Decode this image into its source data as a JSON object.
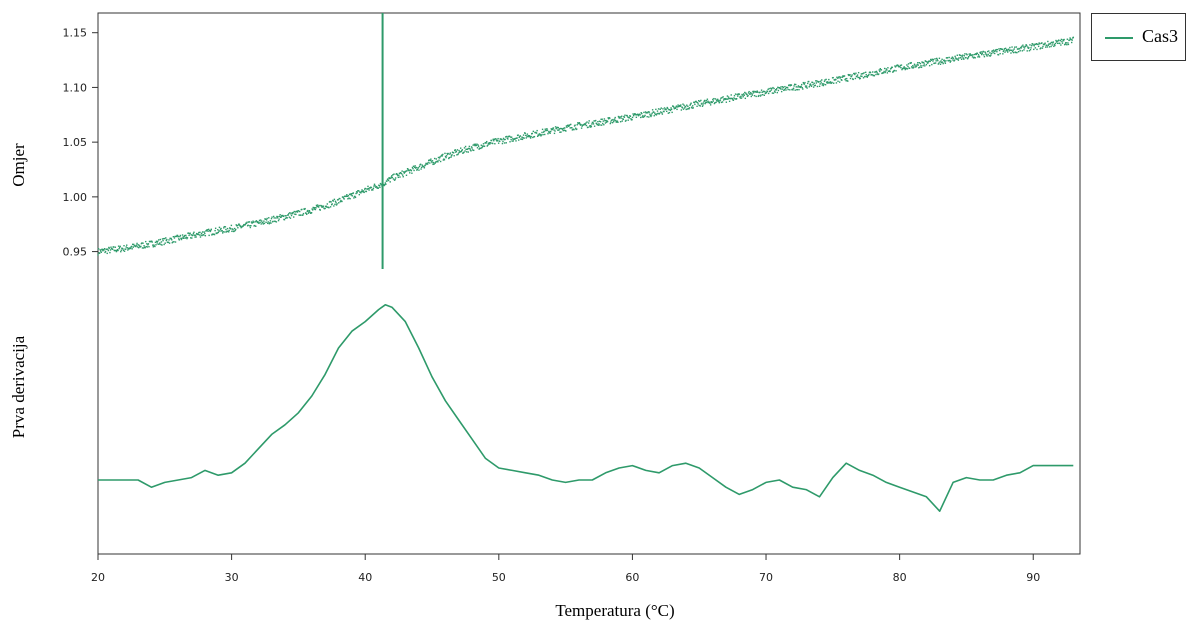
{
  "chart_data": {
    "type": "scatter+line",
    "xlabel": "Temperatura (°C)",
    "xlim": [
      20,
      93.5
    ],
    "x_ticks": [
      "20",
      "30",
      "40",
      "50",
      "60",
      "70",
      "80",
      "90"
    ],
    "top_panel": {
      "ylabel": "Omjer",
      "ylim": [
        0.935,
        1.168
      ],
      "y_ticks": [
        "0.95",
        "1.00",
        "1.05",
        "1.10",
        "1.15"
      ],
      "series_name": "Cas3",
      "points": [
        [
          20,
          0.95
        ],
        [
          22,
          0.953
        ],
        [
          24,
          0.957
        ],
        [
          26,
          0.962
        ],
        [
          28,
          0.967
        ],
        [
          30,
          0.971
        ],
        [
          32,
          0.976
        ],
        [
          34,
          0.982
        ],
        [
          36,
          0.988
        ],
        [
          38,
          0.996
        ],
        [
          40,
          1.006
        ],
        [
          41.5,
          1.013
        ],
        [
          42,
          1.017
        ],
        [
          44,
          1.027
        ],
        [
          46,
          1.037
        ],
        [
          48,
          1.045
        ],
        [
          50,
          1.051
        ],
        [
          55,
          1.063
        ],
        [
          60,
          1.073
        ],
        [
          65,
          1.085
        ],
        [
          70,
          1.096
        ],
        [
          75,
          1.106
        ],
        [
          80,
          1.118
        ],
        [
          85,
          1.128
        ],
        [
          90,
          1.137
        ],
        [
          93,
          1.143
        ]
      ],
      "marker": {
        "x": 41.3,
        "y_from": 0.925,
        "y_to": 1.168
      }
    },
    "bottom_panel": {
      "ylabel": "Prva derivacija",
      "ylim": [
        0,
        1
      ],
      "points": [
        [
          20,
          0.25
        ],
        [
          23,
          0.25
        ],
        [
          24,
          0.22
        ],
        [
          25,
          0.24
        ],
        [
          26,
          0.25
        ],
        [
          27,
          0.26
        ],
        [
          28,
          0.29
        ],
        [
          29,
          0.27
        ],
        [
          30,
          0.28
        ],
        [
          31,
          0.32
        ],
        [
          32,
          0.38
        ],
        [
          33,
          0.44
        ],
        [
          34,
          0.48
        ],
        [
          35,
          0.53
        ],
        [
          36,
          0.6
        ],
        [
          37,
          0.69
        ],
        [
          38,
          0.8
        ],
        [
          39,
          0.87
        ],
        [
          40,
          0.91
        ],
        [
          41,
          0.96
        ],
        [
          41.5,
          0.98
        ],
        [
          42,
          0.97
        ],
        [
          43,
          0.91
        ],
        [
          44,
          0.8
        ],
        [
          45,
          0.68
        ],
        [
          46,
          0.58
        ],
        [
          47,
          0.5
        ],
        [
          48,
          0.42
        ],
        [
          49,
          0.34
        ],
        [
          50,
          0.3
        ],
        [
          51,
          0.29
        ],
        [
          52,
          0.28
        ],
        [
          53,
          0.27
        ],
        [
          54,
          0.25
        ],
        [
          55,
          0.24
        ],
        [
          56,
          0.25
        ],
        [
          57,
          0.25
        ],
        [
          58,
          0.28
        ],
        [
          59,
          0.3
        ],
        [
          60,
          0.31
        ],
        [
          61,
          0.29
        ],
        [
          62,
          0.28
        ],
        [
          63,
          0.31
        ],
        [
          64,
          0.32
        ],
        [
          65,
          0.3
        ],
        [
          66,
          0.26
        ],
        [
          67,
          0.22
        ],
        [
          68,
          0.19
        ],
        [
          69,
          0.21
        ],
        [
          70,
          0.24
        ],
        [
          71,
          0.25
        ],
        [
          72,
          0.22
        ],
        [
          73,
          0.21
        ],
        [
          74,
          0.18
        ],
        [
          75,
          0.26
        ],
        [
          76,
          0.32
        ],
        [
          77,
          0.29
        ],
        [
          78,
          0.27
        ],
        [
          79,
          0.24
        ],
        [
          80,
          0.22
        ],
        [
          81,
          0.2
        ],
        [
          82,
          0.18
        ],
        [
          83,
          0.12
        ],
        [
          84,
          0.24
        ],
        [
          85,
          0.26
        ],
        [
          86,
          0.25
        ],
        [
          87,
          0.25
        ],
        [
          88,
          0.27
        ],
        [
          89,
          0.28
        ],
        [
          90,
          0.31
        ],
        [
          93,
          0.31
        ]
      ]
    },
    "legend": {
      "position": "top-right",
      "entries": [
        "Cas3"
      ]
    },
    "color": "#2e9a6a",
    "grid": false
  }
}
